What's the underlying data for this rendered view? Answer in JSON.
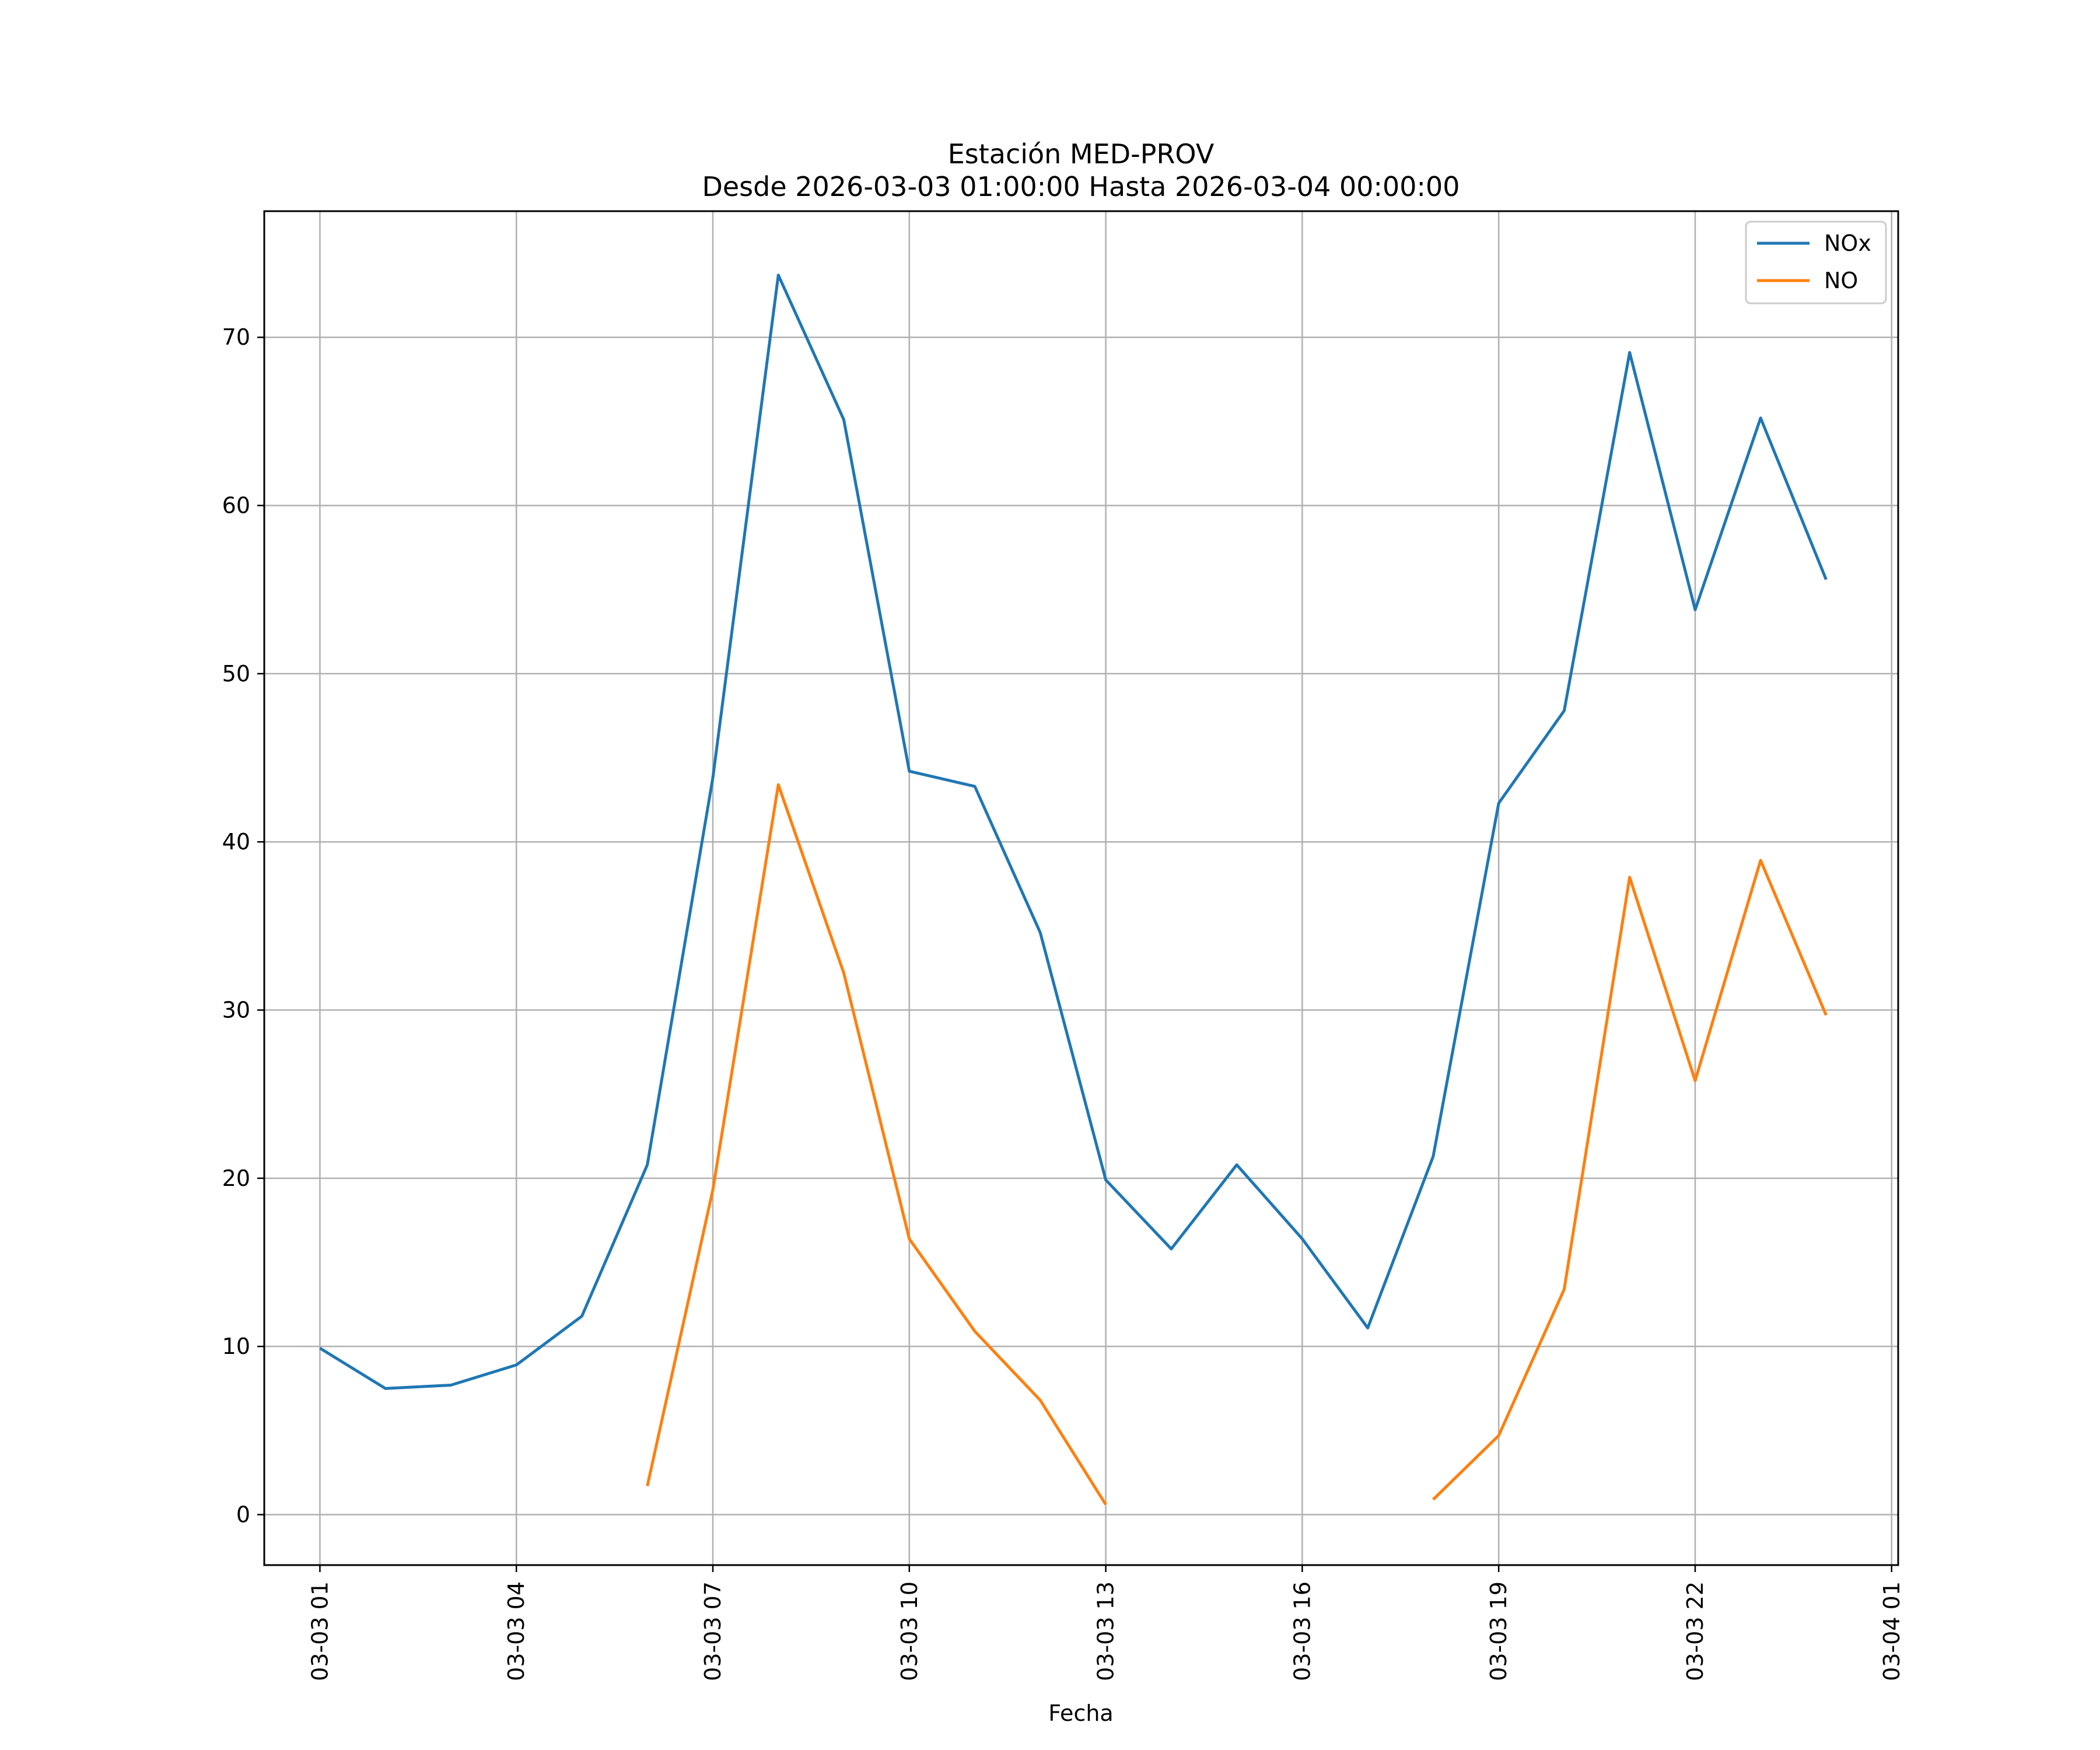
{
  "chart_data": {
    "type": "line",
    "title": "Estación MED-PROV",
    "subtitle": "Desde 2026-03-03 01:00:00 Hasta 2026-03-04 00:00:00",
    "xlabel": "Fecha",
    "ylabel": "",
    "x": [
      "03-03 01",
      "03-03 02",
      "03-03 03",
      "03-03 04",
      "03-03 05",
      "03-03 06",
      "03-03 07",
      "03-03 08",
      "03-03 09",
      "03-03 10",
      "03-03 11",
      "03-03 12",
      "03-03 13",
      "03-03 14",
      "03-03 15",
      "03-03 16",
      "03-03 17",
      "03-03 18",
      "03-03 19",
      "03-03 20",
      "03-03 21",
      "03-03 22",
      "03-03 23",
      "03-04 00"
    ],
    "x_ticks": [
      "03-03 01",
      "03-03 04",
      "03-03 07",
      "03-03 10",
      "03-03 13",
      "03-03 16",
      "03-03 19",
      "03-03 22",
      "03-04 01"
    ],
    "y_ticks": [
      0,
      10,
      20,
      30,
      40,
      50,
      60,
      70
    ],
    "xlim": [
      "03-03 00:09",
      "03-04 01:06"
    ],
    "ylim": [
      -3,
      77.5
    ],
    "grid": true,
    "legend": "top-right",
    "series": [
      {
        "name": "NOx",
        "color": "#1f77b4",
        "values": [
          9.9,
          7.5,
          7.7,
          8.9,
          11.8,
          20.8,
          43.8,
          73.7,
          65.1,
          44.2,
          43.3,
          34.6,
          19.9,
          15.8,
          20.8,
          16.4,
          11.1,
          21.3,
          42.3,
          47.8,
          69.1,
          53.8,
          65.2,
          55.6
        ]
      },
      {
        "name": "NO",
        "color": "#ff7f0e",
        "values": [
          null,
          null,
          null,
          null,
          null,
          1.7,
          19.3,
          43.4,
          32.2,
          16.4,
          10.9,
          6.8,
          0.6,
          null,
          null,
          null,
          null,
          0.9,
          4.7,
          13.4,
          37.9,
          25.8,
          38.9,
          29.7
        ]
      }
    ]
  }
}
